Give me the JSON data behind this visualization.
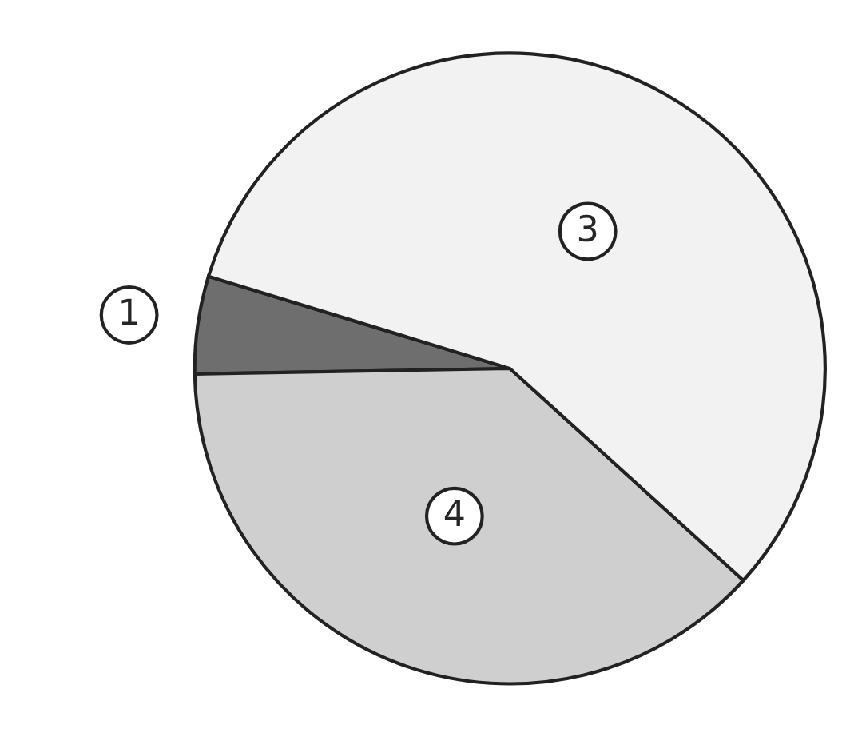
{
  "chart_data": {
    "type": "pie",
    "categories": [
      "1",
      "4",
      "3"
    ],
    "values": [
      5,
      38,
      57
    ],
    "colors": [
      "#6e6e6e",
      "#cfcfcf",
      "#f2f2f2"
    ]
  }
}
